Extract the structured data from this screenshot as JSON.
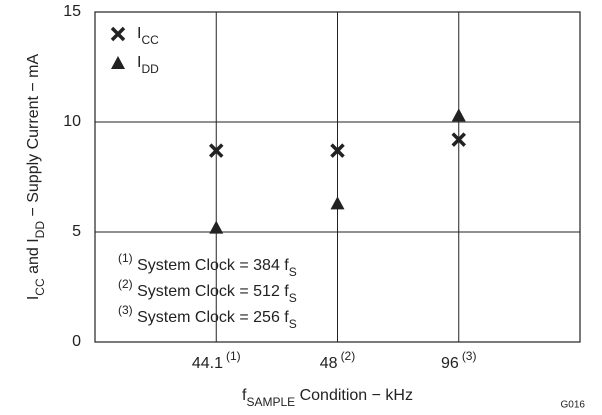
{
  "chart_data": {
    "type": "scatter",
    "categories": [
      "44.1",
      "48",
      "96"
    ],
    "category_notes": [
      "(1)",
      "(2)",
      "(3)"
    ],
    "series": [
      {
        "name": "I",
        "name_subscript": "CC",
        "marker": "x",
        "color": "#222222",
        "values": [
          8.7,
          8.7,
          9.2
        ]
      },
      {
        "name": "I",
        "name_subscript": "DD",
        "marker": "triangle",
        "color": "#222222",
        "values": [
          5.2,
          6.3,
          10.3
        ]
      }
    ],
    "ylim": [
      0,
      15
    ],
    "yticks": [
      0,
      5,
      10,
      15
    ],
    "grid": true,
    "ylabel": [
      {
        "text": "I"
      },
      {
        "text": "CC",
        "sub": true
      },
      {
        "text": " and I"
      },
      {
        "text": "DD",
        "sub": true
      },
      {
        "text": " − Supply Current − mA"
      }
    ],
    "xlabel": [
      {
        "text": "f"
      },
      {
        "text": "SAMPLE",
        "sub": true
      },
      {
        "text": " Condition − kHz"
      }
    ],
    "annotations": [
      [
        {
          "text": "(1)",
          "sup": true
        },
        {
          "text": " System Clock = 384 f"
        },
        {
          "text": "S",
          "sub": true
        }
      ],
      [
        {
          "text": "(2)",
          "sup": true
        },
        {
          "text": " System Clock = 512 f"
        },
        {
          "text": "S",
          "sub": true
        }
      ],
      [
        {
          "text": "(3)",
          "sup": true
        },
        {
          "text": " System Clock = 256 f"
        },
        {
          "text": "S",
          "sub": true
        }
      ]
    ],
    "figure_id": "G016"
  }
}
